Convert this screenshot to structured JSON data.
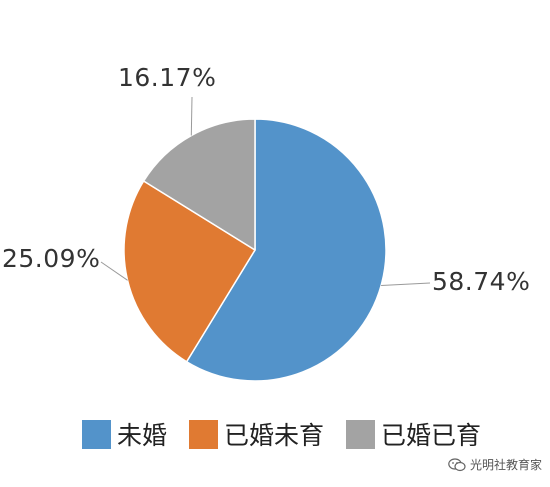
{
  "chart_data": {
    "type": "pie",
    "slices": [
      {
        "name": "未婚",
        "value": 58.74,
        "label": "58.74%",
        "color": "#5393ca"
      },
      {
        "name": "已婚未育",
        "value": 25.09,
        "label": "25.09%",
        "color": "#e07a32"
      },
      {
        "name": "已婚已育",
        "value": 16.17,
        "label": "16.17%",
        "color": "#a3a3a3"
      }
    ],
    "start_angle_deg": 0,
    "direction": "clockwise",
    "legend_position": "bottom",
    "label_style": "outside-with-leader-lines"
  },
  "watermark": {
    "text": "光明社教育家",
    "icon": "wechat-icon"
  }
}
